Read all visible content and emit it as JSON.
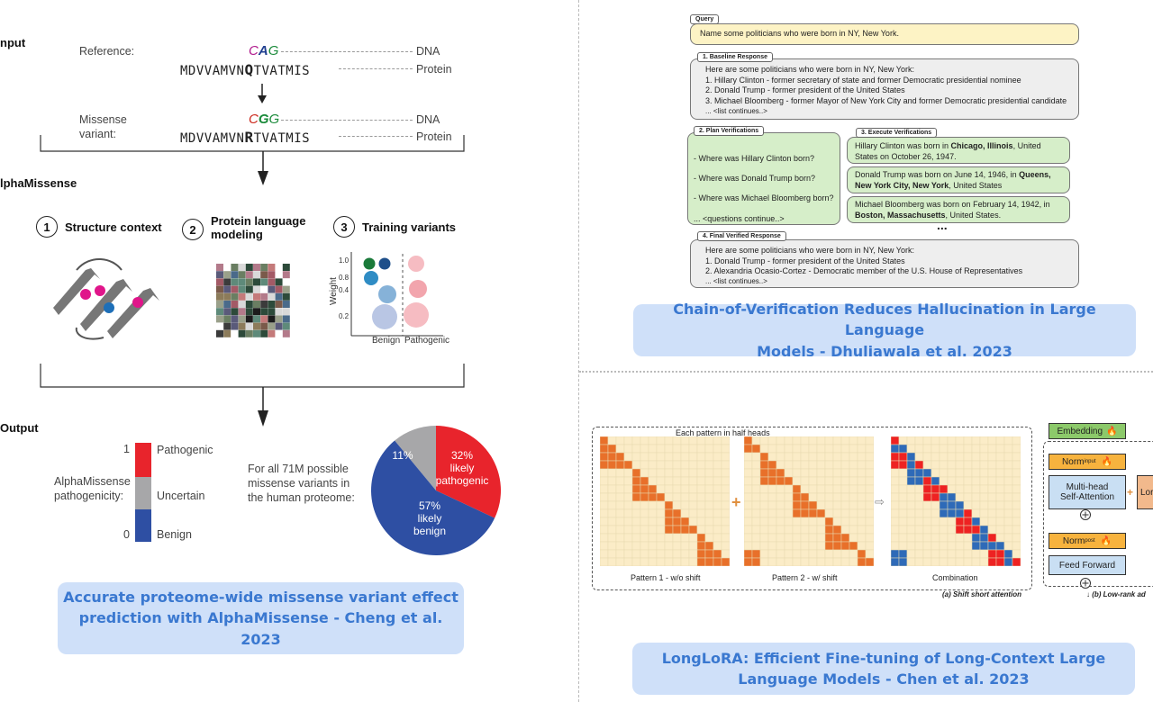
{
  "alphamissense": {
    "input_label": "nput",
    "reference_label": "Reference:",
    "codon_ref_c": "C",
    "codon_ref_a": "A",
    "codon_ref_g": "G",
    "dna_label_1": "DNA",
    "protein_ref_prefix": "MDVVAMVN",
    "protein_ref_bold": "Q",
    "protein_ref_suffix": "TVATMIS",
    "protein_label_1": "Protein",
    "missense_label_1": "Missense",
    "missense_label_2": "variant:",
    "codon_var_c": "C",
    "codon_var_g1": "G",
    "codon_var_g2": "G",
    "dna_label_2": "DNA",
    "protein_var_prefix": "MDVVAMVN",
    "protein_var_bold": "R",
    "protein_var_suffix": "TVATMIS",
    "protein_label_2": "Protein",
    "model_label": "lphaMissense",
    "step1_num": "1",
    "step1_label": "Structure context",
    "step2_num": "2",
    "step2_label_1": "Protein language",
    "step2_label_2": "modeling",
    "step3_num": "3",
    "step3_label": "Training variants",
    "weight_label": "Weight",
    "weight_ticks": [
      "1.0",
      "0.8",
      "0.4",
      "0.2"
    ],
    "benign_axis": "Benign",
    "pathogenic_axis": "Pathogenic",
    "output_label": "Output",
    "scale_top": "1",
    "scale_bottom": "0",
    "scale_pathogenic": "Pathogenic",
    "scale_uncertain": "Uncertain",
    "scale_benign": "Benign",
    "pathogenicity_1": "AlphaMissense",
    "pathogenicity_2": "pathogenicity:",
    "variants_text_1": "For all 71M possible",
    "variants_text_2": "missense variants in",
    "variants_text_3": "the human proteome:",
    "pie_red_1": "32%",
    "pie_red_2": "likely",
    "pie_red_3": "pathogenic",
    "pie_gray": "11%",
    "pie_blue_1": "57%",
    "pie_blue_2": "likely",
    "pie_blue_3": "benign",
    "caption_1": "Accurate proteome-wide missense variant effect",
    "caption_2": "prediction with AlphaMissense - Cheng et al. 2023"
  },
  "cove": {
    "query_tag": "Query",
    "query_text": "Name some politicians who were born in NY, New York.",
    "baseline_tag": "1. Baseline Response",
    "baseline_lines": [
      "Here are some politicians who were born in NY, New York:",
      "1. Hillary Clinton - former secretary of state and former Democratic presidential nominee",
      "2. Donald Trump - former president of the United States",
      "3. Michael Bloomberg - former Mayor of New York City and former Democratic presidential candidate",
      "... <list continues..>"
    ],
    "plan_tag": "2. Plan Verifications",
    "plan_lines": [
      "- Where was Hillary Clinton born?",
      "- Where was Donald Trump born?",
      "- Where was Michael Bloomberg born?",
      "... <questions continue..>"
    ],
    "execute_tag": "3. Execute Verifications",
    "exec1_a": "Hillary Clinton was born in ",
    "exec1_b": "Chicago, Illinois",
    "exec1_c": ", United",
    "exec1_d": "States on October 26, 1947.",
    "exec2_a": "Donald Trump was born on June 14, 1946, in ",
    "exec2_b": "Queens,",
    "exec2_c": "New York City, New York",
    "exec2_d": ", United States",
    "exec3_a": "Michael Bloomberg was born on February 14, 1942, in",
    "exec3_b": "Boston, Massachusetts",
    "exec3_c": ", United States.",
    "ellipsis": "...",
    "final_tag": "4. Final Verified Response",
    "final_lines": [
      "Here are some politicians who were born in NY, New York:",
      "1. Donald Trump - former president of the United States",
      "2. Alexandria Ocasio-Cortez - Democratic member of the U.S. House of Representatives",
      "... <list continues..>"
    ],
    "caption_1": "Chain-of-Verification Reduces Hallucination in Large Language",
    "caption_2": "Models - Dhuliawala et al. 2023"
  },
  "longlora": {
    "heads_title": "Each pattern in half heads",
    "pattern1": "Pattern 1 - w/o shift",
    "pattern2": "Pattern 2 - w/ shift",
    "combination": "Combination",
    "shift_caption": "(a) Shift short attention",
    "embedding": "Embedding",
    "norm_input": "Norm",
    "norm_input_sub": "input",
    "mha_1": "Multi-head",
    "mha_2": "Self-Attention",
    "lora": "Lor",
    "norm_post": "Norm",
    "norm_post_sub": "post",
    "feed_forward": "Feed Forward",
    "lowrank_caption": "(b) Low-rank ad",
    "caption_1": "LongLoRA: Efficient Fine-tuning of Long-Context Large",
    "caption_2": "Language Models - Chen et al. 2023"
  }
}
